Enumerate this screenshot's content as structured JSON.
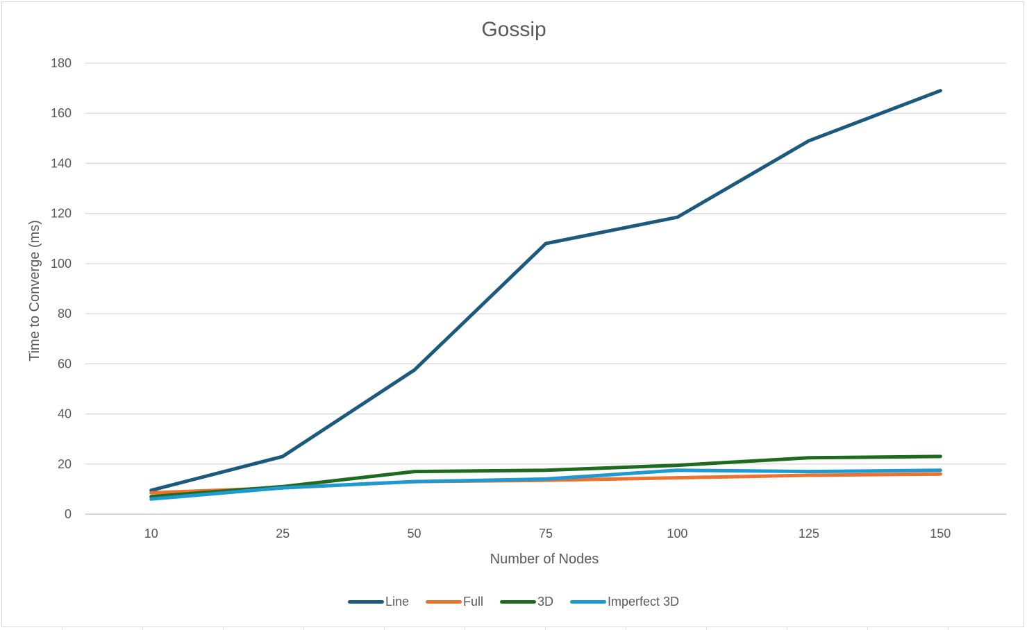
{
  "chart_data": {
    "type": "line",
    "title": "Gossip",
    "xlabel": "Number of Nodes",
    "ylabel": "Time to Converge (ms)",
    "categories": [
      "10",
      "25",
      "50",
      "75",
      "100",
      "125",
      "150"
    ],
    "ylim": [
      0,
      180
    ],
    "yticks": [
      "0",
      "20",
      "40",
      "60",
      "80",
      "100",
      "120",
      "140",
      "160",
      "180"
    ],
    "grid": true,
    "legend": "bottom",
    "series": [
      {
        "name": "Line",
        "color": "#1b5a7d",
        "values": [
          9.5,
          23,
          57.5,
          108,
          118.5,
          149,
          169
        ]
      },
      {
        "name": "Full",
        "color": "#ed7230",
        "values": [
          8.5,
          10.5,
          13,
          13.5,
          14.5,
          15.5,
          16
        ]
      },
      {
        "name": "3D",
        "color": "#1e6b20",
        "values": [
          7,
          11,
          17,
          17.5,
          19.5,
          22.5,
          23
        ]
      },
      {
        "name": "Imperfect 3D",
        "color": "#1e9ad3",
        "values": [
          6,
          10.5,
          13,
          14,
          17.5,
          17,
          17.5
        ]
      }
    ]
  }
}
